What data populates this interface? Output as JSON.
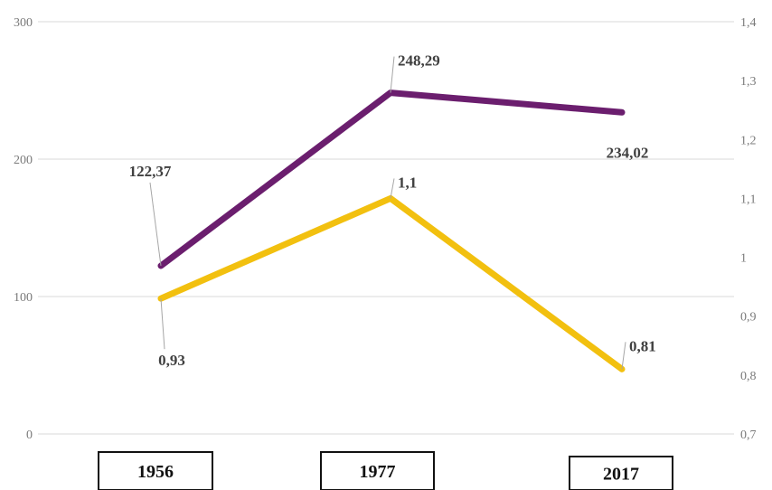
{
  "chart_data": {
    "type": "line",
    "categories": [
      "1956",
      "1977",
      "2017"
    ],
    "series": [
      {
        "axis": "left",
        "color": "#6b1e6e",
        "values": [
          122.37,
          248.29,
          234.02
        ],
        "labels": [
          "122,37",
          "248,29",
          "234,02"
        ]
      },
      {
        "axis": "right",
        "color": "#f2c00f",
        "values": [
          0.93,
          1.1,
          0.81
        ],
        "labels": [
          "0,93",
          "1,1",
          "0,81"
        ]
      }
    ],
    "y_left": {
      "lim": [
        0,
        300
      ],
      "ticks": [
        "0",
        "100",
        "200",
        "300"
      ]
    },
    "y_right": {
      "lim": [
        0.7,
        1.4
      ],
      "ticks": [
        "0,7",
        "0,8",
        "0,9",
        "1",
        "1,1",
        "1,2",
        "1,3",
        "1,4"
      ]
    },
    "grid": true,
    "legend": "none"
  }
}
